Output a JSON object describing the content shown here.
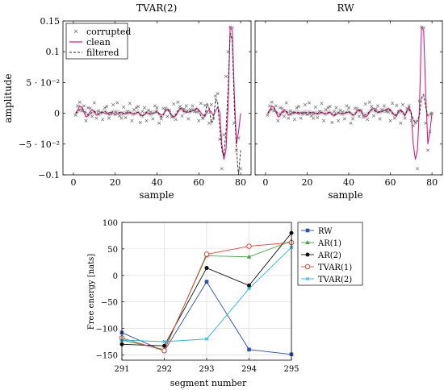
{
  "chart_data": [
    {
      "type": "line",
      "title": "TVAR(2)",
      "xlabel": "sample",
      "ylabel": "amplitude",
      "xlim": [
        -5,
        85
      ],
      "ylim": [
        -0.1,
        0.15
      ],
      "xticks": [
        0,
        20,
        40,
        60,
        80
      ],
      "xtick_labels": [
        "0",
        "20",
        "40",
        "60",
        "80"
      ],
      "yticks": [
        -0.1,
        -0.05,
        0,
        0.05,
        0.1,
        0.15
      ],
      "ytick_labels": [
        "−0.1",
        "−5 · 10⁻²",
        "0",
        "5 · 10⁻²",
        "0.1",
        "0.15"
      ],
      "legend": {
        "position": "top-left",
        "entries": [
          "corrupted",
          "clean",
          "filtered"
        ]
      },
      "x": [
        1,
        2,
        3,
        4,
        5,
        6,
        7,
        8,
        9,
        10,
        11,
        12,
        13,
        14,
        15,
        16,
        17,
        18,
        19,
        20,
        21,
        22,
        23,
        24,
        25,
        26,
        27,
        28,
        29,
        30,
        31,
        32,
        33,
        34,
        35,
        36,
        37,
        38,
        39,
        40,
        41,
        42,
        43,
        44,
        45,
        46,
        47,
        48,
        49,
        50,
        51,
        52,
        53,
        54,
        55,
        56,
        57,
        58,
        59,
        60,
        61,
        62,
        63,
        64,
        65,
        66,
        67,
        68,
        69,
        70,
        71,
        72,
        73,
        74,
        75,
        76,
        77,
        78,
        79,
        80
      ],
      "series": [
        {
          "name": "corrupted",
          "values": [
            -0.003,
            0.012,
            0.018,
            0.004,
            0.012,
            -0.012,
            0.009,
            0.008,
            -0.005,
            0.017,
            -0.008,
            0.004,
            0.001,
            -0.01,
            0.009,
            0.011,
            -0.008,
            -0.001,
            0.014,
            -0.002,
            0.017,
            -0.004,
            -0.008,
            0.01,
            -0.007,
            0.003,
            0.016,
            -0.012,
            0.006,
            0.009,
            0.011,
            -0.015,
            0.003,
            0.009,
            -0.012,
            0.005,
            0.002,
            -0.009,
            0.012,
            0.009,
            -0.016,
            -0.009,
            0.008,
            0.008,
            -0.005,
            0.005,
            -0.006,
            0.015,
            -0.01,
            0.018,
            0.011,
            -0.004,
            0.007,
            0.012,
            -0.009,
            0.006,
            0.012,
            0.003,
            0.002,
            -0.012,
            0.016,
            -0.008,
            0.013,
            0.002,
            -0.016,
            0.014,
            -0.008,
            0.028,
            0.032,
            -0.042,
            -0.09,
            -0.035,
            0.06,
            0.1,
            0.14,
            0.139,
            -0.016,
            -0.06,
            -0.04,
            -0.09
          ]
        },
        {
          "name": "clean",
          "values": [
            0.0,
            0.005,
            0.012,
            0.01,
            0.002,
            -0.006,
            -0.004,
            0.003,
            0.006,
            0.002,
            -0.003,
            -0.002,
            0.001,
            0.002,
            0.0,
            -0.001,
            0.001,
            0.002,
            0.0,
            -0.002,
            -0.001,
            0.001,
            0.002,
            0.0,
            -0.001,
            0.0,
            0.001,
            0.0,
            -0.001,
            0.0,
            0.002,
            -0.002,
            -0.004,
            -0.002,
            0.001,
            0.0,
            -0.001,
            0.0,
            0.001,
            0.002,
            0.0,
            -0.003,
            -0.002,
            0.004,
            0.006,
            0.003,
            -0.003,
            -0.006,
            -0.004,
            0.002,
            0.007,
            0.008,
            0.004,
            0.001,
            0.002,
            0.003,
            0.004,
            0.006,
            0.008,
            0.006,
            0.001,
            -0.003,
            -0.005,
            0.003,
            0.006,
            0.002,
            -0.004,
            0.004,
            0.01,
            0.002,
            -0.05,
            -0.075,
            -0.06,
            0.01,
            0.14,
            0.135,
            0.03,
            -0.05,
            -0.03,
            0.0
          ]
        },
        {
          "name": "filtered",
          "values": [
            0.0,
            0.002,
            0.006,
            0.008,
            0.005,
            0.0,
            -0.003,
            -0.001,
            0.002,
            0.003,
            0.001,
            -0.001,
            0.0,
            0.002,
            0.003,
            0.001,
            -0.002,
            0.0,
            0.003,
            0.002,
            0.002,
            0.001,
            -0.002,
            0.0,
            0.001,
            0.001,
            0.002,
            -0.001,
            -0.001,
            0.001,
            0.002,
            -0.003,
            -0.005,
            -0.001,
            0.002,
            0.0,
            -0.002,
            0.0,
            0.002,
            0.004,
            -0.002,
            -0.006,
            -0.003,
            0.005,
            0.007,
            0.002,
            -0.004,
            -0.006,
            -0.002,
            0.004,
            0.008,
            0.006,
            0.002,
            0.003,
            0.004,
            0.002,
            0.006,
            0.004,
            0.008,
            0.003,
            -0.004,
            -0.008,
            -0.002,
            0.015,
            0.008,
            -0.016,
            -0.01,
            0.023,
            0.018,
            -0.025,
            -0.06,
            -0.07,
            -0.03,
            0.04,
            0.13,
            0.12,
            0.01,
            -0.06,
            -0.1,
            -0.06
          ]
        }
      ]
    },
    {
      "type": "line",
      "title": "RW",
      "xlabel": "sample",
      "xlim": [
        -5,
        85
      ],
      "ylim": [
        -0.1,
        0.15
      ],
      "xticks": [
        0,
        20,
        40,
        60,
        80
      ],
      "xtick_labels": [
        "0",
        "20",
        "40",
        "60",
        "80"
      ],
      "x": [
        1,
        2,
        3,
        4,
        5,
        6,
        7,
        8,
        9,
        10,
        11,
        12,
        13,
        14,
        15,
        16,
        17,
        18,
        19,
        20,
        21,
        22,
        23,
        24,
        25,
        26,
        27,
        28,
        29,
        30,
        31,
        32,
        33,
        34,
        35,
        36,
        37,
        38,
        39,
        40,
        41,
        42,
        43,
        44,
        45,
        46,
        47,
        48,
        49,
        50,
        51,
        52,
        53,
        54,
        55,
        56,
        57,
        58,
        59,
        60,
        61,
        62,
        63,
        64,
        65,
        66,
        67,
        68,
        69,
        70,
        71,
        72,
        73,
        74,
        75,
        76,
        77,
        78,
        79,
        80
      ],
      "series": [
        {
          "name": "corrupted",
          "values": [
            -0.003,
            0.012,
            0.018,
            0.004,
            0.012,
            -0.012,
            0.009,
            0.008,
            -0.005,
            0.017,
            -0.008,
            0.004,
            0.001,
            -0.01,
            0.009,
            0.011,
            -0.008,
            -0.001,
            0.014,
            -0.002,
            0.017,
            -0.004,
            -0.008,
            0.01,
            -0.007,
            0.003,
            0.016,
            -0.012,
            0.006,
            0.009,
            0.011,
            -0.015,
            0.003,
            0.009,
            -0.012,
            0.005,
            0.002,
            -0.009,
            0.012,
            0.009,
            -0.016,
            -0.009,
            0.008,
            0.008,
            -0.005,
            0.005,
            -0.006,
            0.015,
            -0.01,
            0.018,
            0.011,
            -0.004,
            0.007,
            0.012,
            -0.009,
            0.006,
            0.012,
            0.003,
            0.002,
            -0.012,
            0.016,
            -0.008,
            0.013,
            0.002,
            -0.016,
            0.014,
            -0.008,
            0.008,
            0.012,
            -0.012,
            -0.02,
            -0.015,
            -0.09,
            0.02,
            0.14,
            0.139,
            -0.016,
            -0.06,
            -0.03,
            0.0
          ]
        },
        {
          "name": "clean",
          "values": [
            0.0,
            0.005,
            0.012,
            0.01,
            0.002,
            -0.006,
            -0.004,
            0.003,
            0.006,
            0.002,
            -0.003,
            -0.002,
            0.001,
            0.002,
            0.0,
            -0.001,
            0.001,
            0.002,
            0.0,
            -0.002,
            -0.001,
            0.001,
            0.002,
            0.0,
            -0.001,
            0.0,
            0.001,
            0.0,
            -0.001,
            0.0,
            0.002,
            -0.002,
            -0.004,
            -0.002,
            0.001,
            0.0,
            -0.001,
            0.0,
            0.001,
            0.002,
            0.0,
            -0.003,
            -0.002,
            0.004,
            0.006,
            0.003,
            -0.003,
            -0.006,
            -0.004,
            0.002,
            0.007,
            0.008,
            0.004,
            0.001,
            0.002,
            0.003,
            0.004,
            0.006,
            0.008,
            0.006,
            0.001,
            -0.003,
            -0.005,
            0.003,
            0.006,
            0.002,
            -0.004,
            0.004,
            0.01,
            0.002,
            -0.05,
            -0.075,
            -0.06,
            0.01,
            0.14,
            0.135,
            0.03,
            -0.05,
            -0.03,
            0.0
          ]
        },
        {
          "name": "filtered",
          "values": [
            0.0,
            0.003,
            0.007,
            0.008,
            0.004,
            -0.001,
            -0.002,
            0.001,
            0.003,
            0.003,
            0.001,
            -0.001,
            0.0,
            0.001,
            0.002,
            0.001,
            0.0,
            0.0,
            0.002,
            0.001,
            0.002,
            0.001,
            -0.001,
            0.0,
            0.0,
            0.001,
            0.002,
            0.0,
            -0.001,
            0.001,
            0.002,
            -0.002,
            -0.003,
            0.0,
            0.001,
            0.0,
            -0.001,
            0.0,
            0.002,
            0.003,
            0.0,
            -0.003,
            -0.001,
            0.003,
            0.004,
            0.002,
            -0.002,
            -0.003,
            -0.001,
            0.003,
            0.006,
            0.005,
            0.003,
            0.002,
            0.003,
            0.003,
            0.005,
            0.005,
            0.007,
            0.004,
            0.0,
            -0.003,
            -0.002,
            0.004,
            0.004,
            0.0,
            -0.002,
            0.004,
            0.006,
            0.0,
            -0.01,
            -0.015,
            -0.012,
            -0.004,
            0.025,
            0.03,
            0.01,
            -0.004,
            -0.002,
            0.0
          ]
        }
      ]
    },
    {
      "type": "line",
      "xlabel": "segment number",
      "ylabel": "Free energy [nats]",
      "xlim": [
        291,
        295
      ],
      "ylim": [
        -160,
        100
      ],
      "categories": [
        291,
        292,
        293,
        294,
        295
      ],
      "yticks": [
        -150,
        -100,
        -50,
        0,
        50,
        100
      ],
      "ytick_labels": [
        "−150",
        "−100",
        "−50",
        "0",
        "50",
        "100"
      ],
      "legend": {
        "position": "right",
        "entries": [
          "RW",
          "AR(1)",
          "AR(2)",
          "TVAR(1)",
          "TVAR(2)"
        ]
      },
      "series": [
        {
          "name": "RW",
          "values": [
            -108,
            -143,
            -12,
            -140,
            -149
          ]
        },
        {
          "name": "AR(1)",
          "values": [
            -122,
            -140,
            37,
            35,
            65
          ]
        },
        {
          "name": "AR(2)",
          "values": [
            -130,
            -133,
            14,
            -19,
            80
          ]
        },
        {
          "name": "TVAR(1)",
          "values": [
            -118,
            -142,
            40,
            55,
            62
          ]
        },
        {
          "name": "TVAR(2)",
          "values": [
            -122,
            -125,
            -120,
            -25,
            53
          ]
        }
      ]
    }
  ],
  "colors": {
    "corrupted": "#6b6b6b",
    "clean": "#e0197d",
    "filtered": "#222222",
    "band": "#c8c8c8",
    "RW": "#2b4fb3",
    "AR(1)": "#3ea83e",
    "AR(2)": "#111111",
    "TVAR(1)": "#e8463c",
    "TVAR(2)": "#22b8e0"
  }
}
